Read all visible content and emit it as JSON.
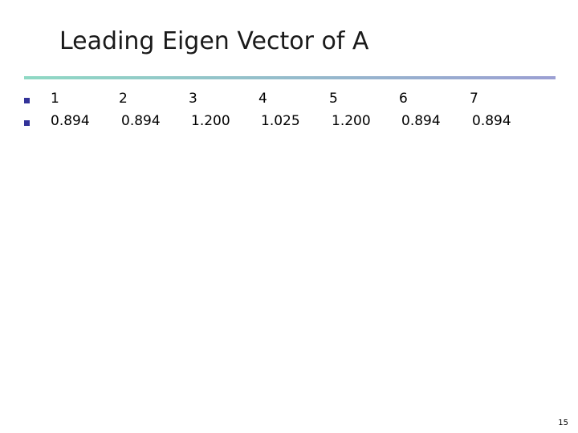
{
  "title": "Leading Eigen Vector of A",
  "table": {
    "rows": [
      [
        "1",
        "2",
        "3",
        "4",
        "5",
        "6",
        "7"
      ],
      [
        "0.894",
        "0.894",
        "1.200",
        "1.025",
        "1.200",
        "0.894",
        "0.894"
      ]
    ]
  },
  "page_number": "15"
}
